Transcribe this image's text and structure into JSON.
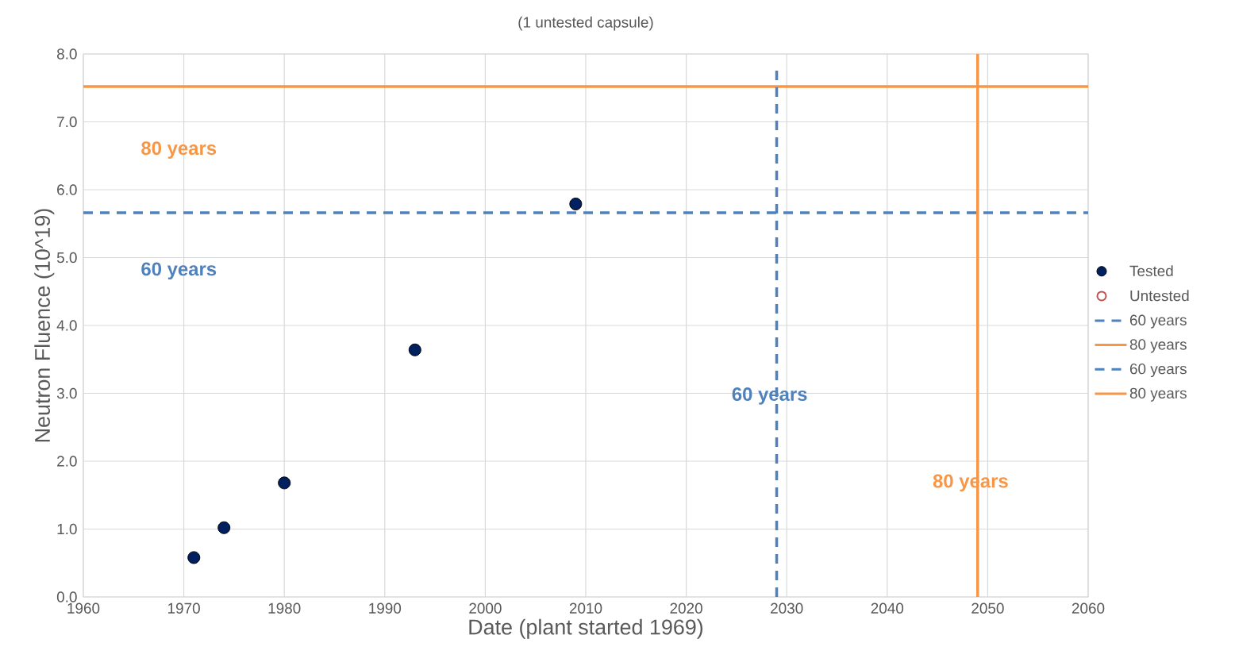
{
  "chart_data": {
    "type": "scatter",
    "title": "(1 untested capsule)",
    "xlabel": "Date (plant started 1969)",
    "ylabel": "Neutron Fluence (10^19)",
    "series": [
      {
        "name": "Tested",
        "color": "#002060",
        "x": [
          1971,
          1974,
          1980,
          1993,
          2009
        ],
        "values": [
          0.58,
          1.02,
          1.68,
          3.64,
          5.79
        ]
      },
      {
        "name": "Untested",
        "color": "#c0504d"
      }
    ],
    "ref_lines": [
      {
        "axis": "y",
        "value": 5.66,
        "label": "60 years",
        "color": "#4f81bd",
        "line_style": "dashed"
      },
      {
        "axis": "y",
        "value": 7.52,
        "label": "80 years",
        "color": "#f79646",
        "line_style": "solid"
      },
      {
        "axis": "x",
        "value": 2029,
        "label": "60 years",
        "color": "#4f81bd",
        "line_style": "dashed"
      },
      {
        "axis": "x",
        "value": 2049,
        "label": "80 years",
        "color": "#f79646",
        "line_style": "solid"
      }
    ],
    "xlim": [
      1960,
      2060
    ],
    "ylim": [
      0,
      8
    ],
    "xticks": [
      1960,
      1970,
      1980,
      1990,
      2000,
      2010,
      2020,
      2030,
      2040,
      2050,
      2060
    ],
    "yticks": [
      {
        "value": 0,
        "label": "0.0"
      },
      {
        "value": 1,
        "label": "1.0"
      },
      {
        "value": 2,
        "label": "2.0"
      },
      {
        "value": 3,
        "label": "3.0"
      },
      {
        "value": 4,
        "label": "4.0"
      },
      {
        "value": 5,
        "label": "5.0"
      },
      {
        "value": 6,
        "label": "6.0"
      },
      {
        "value": 7,
        "label": "7.0"
      },
      {
        "value": 8,
        "label": "8.0"
      }
    ],
    "grid": true,
    "legend": "right",
    "marker": "circle"
  }
}
